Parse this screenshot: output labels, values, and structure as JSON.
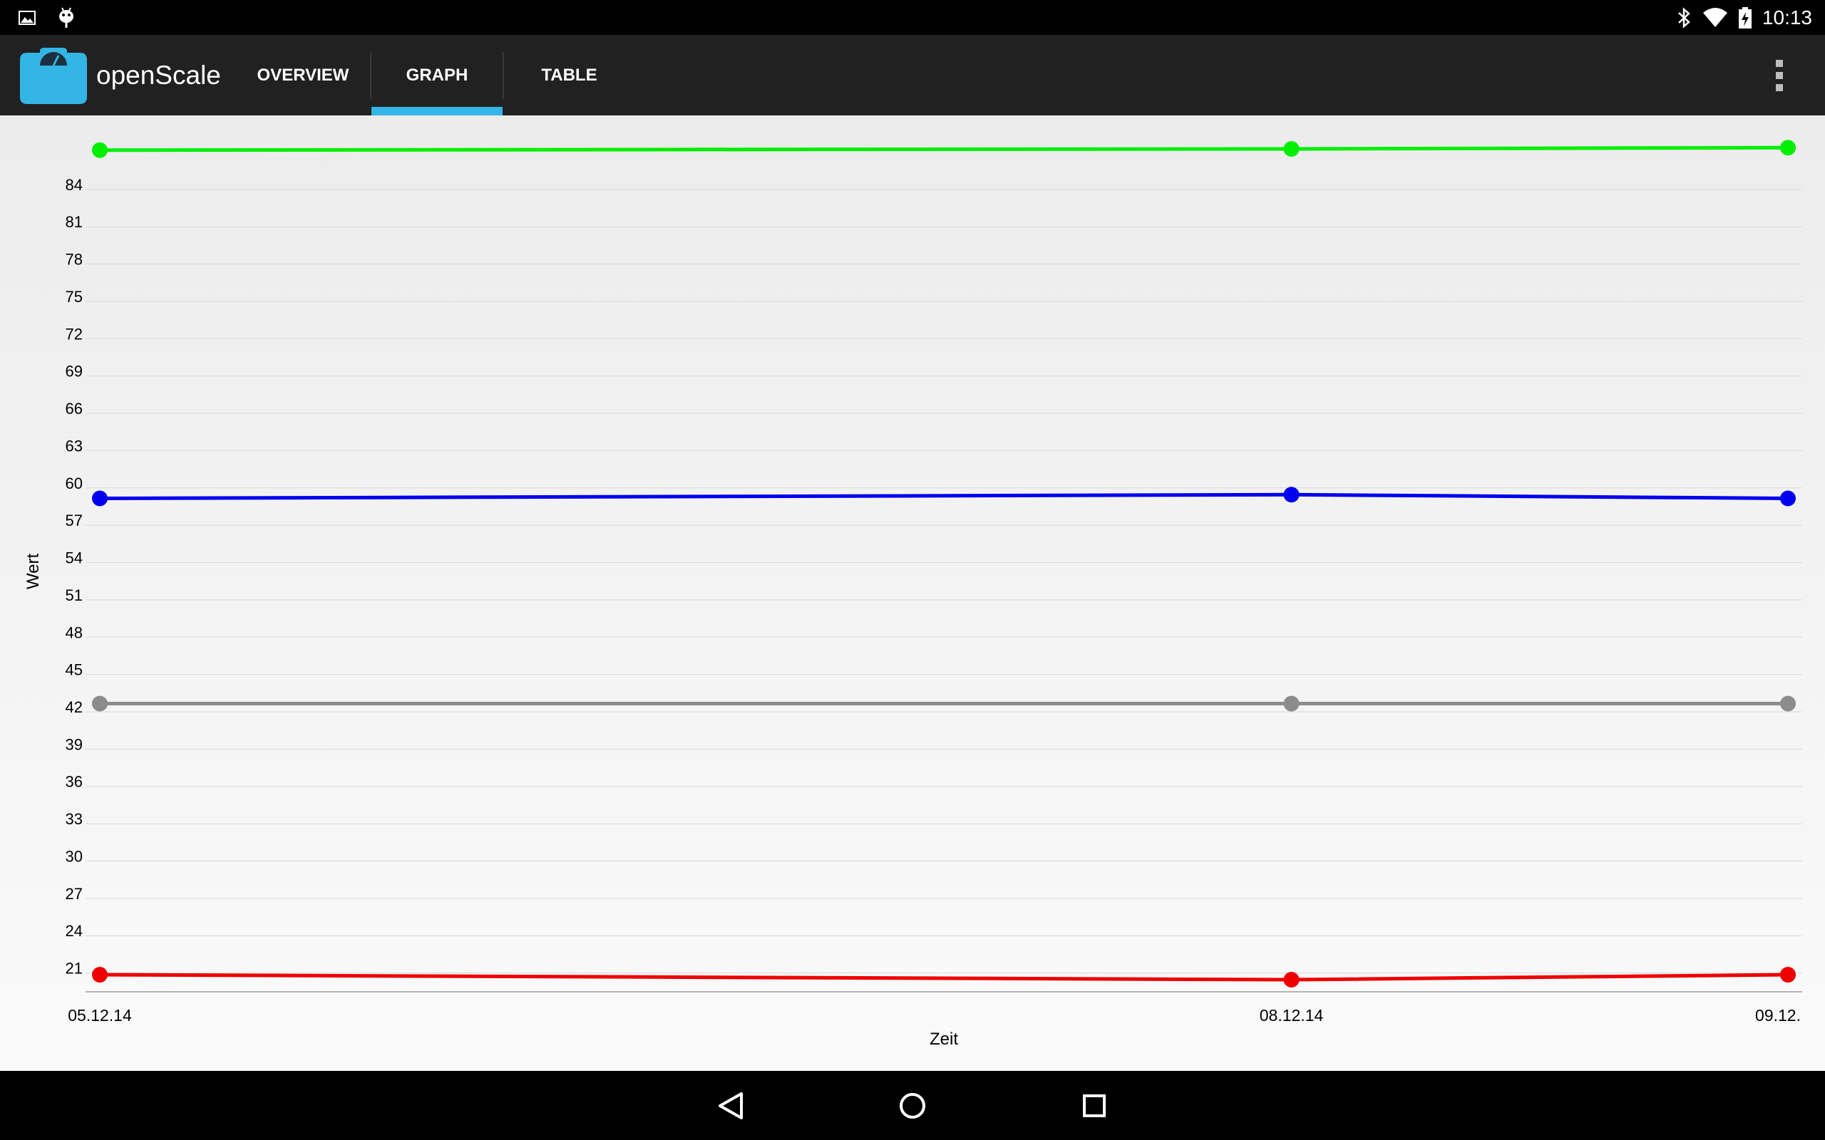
{
  "status_bar": {
    "time": "10:13",
    "left_icons": [
      "image-notification-icon",
      "android-debug-icon"
    ],
    "right_icons": [
      "bluetooth-icon",
      "wifi-icon",
      "battery-charging-icon"
    ]
  },
  "action_bar": {
    "app_title": "openScale",
    "tabs": [
      {
        "label": "OVERVIEW",
        "selected": false
      },
      {
        "label": "GRAPH",
        "selected": true
      },
      {
        "label": "TABLE",
        "selected": false
      }
    ],
    "accent_color": "#33b5e5"
  },
  "chart_data": {
    "type": "line",
    "xlabel": "Zeit",
    "ylabel": "Wert",
    "categories": [
      "05.12.14",
      "08.12.14",
      "09.12."
    ],
    "x_days": [
      0,
      3,
      4.25
    ],
    "yticks": [
      21,
      24,
      27,
      30,
      33,
      36,
      39,
      42,
      45,
      48,
      51,
      54,
      57,
      60,
      63,
      66,
      69,
      72,
      75,
      78,
      81,
      84
    ],
    "ylim": [
      19.6,
      87.2
    ],
    "grid": true,
    "series": [
      {
        "color": "#00ee00",
        "values": [
          86.7,
          86.8,
          86.9
        ]
      },
      {
        "color": "#0000ee",
        "values": [
          58.7,
          59.0,
          58.7
        ]
      },
      {
        "color": "#8c8c8c",
        "values": [
          42.2,
          42.2,
          42.2
        ]
      },
      {
        "color": "#ee0000",
        "values": [
          20.4,
          20.0,
          20.4
        ]
      }
    ]
  },
  "nav_bar": {
    "buttons": [
      "back-button",
      "home-button",
      "recents-button"
    ]
  }
}
